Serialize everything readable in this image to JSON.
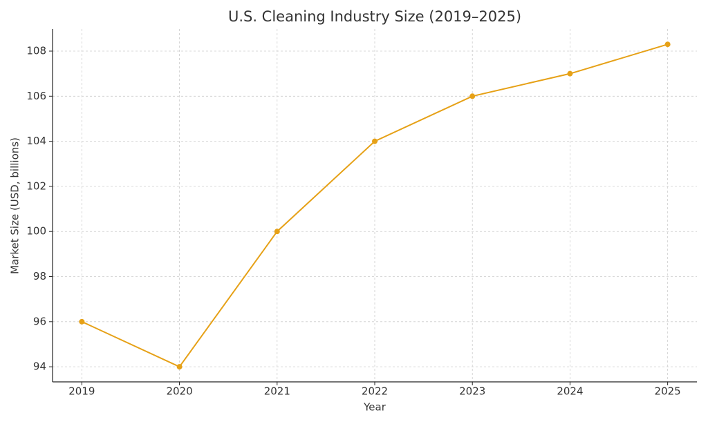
{
  "chart_data": {
    "type": "line",
    "title": "U.S. Cleaning Industry Size (2019–2025)",
    "x_label": "Year",
    "y_label": "Market Size (USD, billions)",
    "x": [
      2019,
      2020,
      2021,
      2022,
      2023,
      2024,
      2025
    ],
    "series": [
      {
        "name": "Market Size",
        "color": "#e6a117",
        "values": [
          96,
          94,
          100,
          104,
          106,
          107,
          108.3
        ]
      }
    ],
    "xlim": [
      2018.7,
      2025.3
    ],
    "xticks": [
      2019,
      2020,
      2021,
      2022,
      2023,
      2024,
      2025
    ],
    "ylim": [
      93.33,
      108.98
    ],
    "yticks": [
      94,
      96,
      98,
      100,
      102,
      104,
      106,
      108
    ],
    "grid": true
  }
}
